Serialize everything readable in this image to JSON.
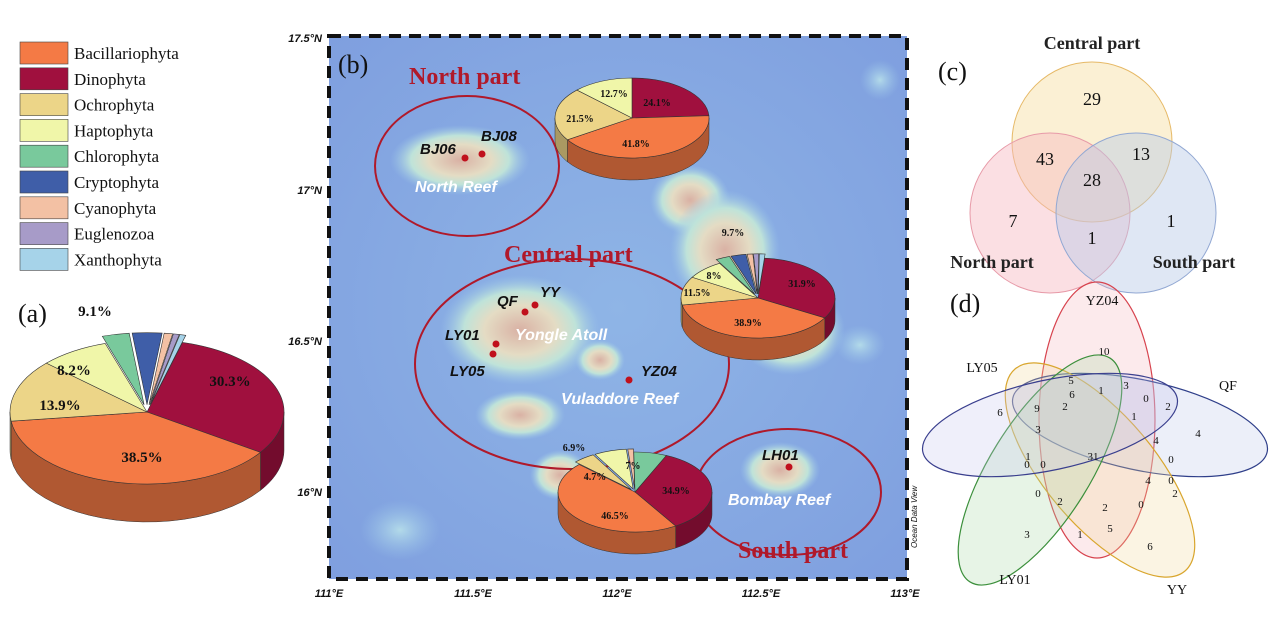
{
  "legend": {
    "items": [
      {
        "label": "Bacillariophyta",
        "color": "#f47a45"
      },
      {
        "label": "Dinophyta",
        "color": "#a0103e"
      },
      {
        "label": "Ochrophyta",
        "color": "#ecd588"
      },
      {
        "label": "Haptophyta",
        "color": "#f0f6a9"
      },
      {
        "label": "Chlorophyta",
        "color": "#79c99c"
      },
      {
        "label": "Cryptophyta",
        "color": "#3f5ea8"
      },
      {
        "label": "Cyanophyta",
        "color": "#f3c1a4"
      },
      {
        "label": "Euglenozoa",
        "color": "#a79bc8"
      },
      {
        "label": "Xanthophyta",
        "color": "#a6d3e9"
      }
    ]
  },
  "panel_labels": {
    "a": "(a)",
    "b": "(b)",
    "c": "(c)",
    "d": "(d)"
  },
  "pie_a": {
    "labels": [
      "38.5%",
      "30.3%",
      "13.9%",
      "8.2%",
      "9.1%"
    ]
  },
  "map": {
    "lat_ticks": [
      "17.5°N",
      "17°N",
      "16.5°N",
      "16°N"
    ],
    "lon_ticks": [
      "111°E",
      "111.5°E",
      "112°E",
      "112.5°E",
      "113°E"
    ],
    "region_titles": [
      "North part",
      "Central part",
      "South part"
    ],
    "reef_names": [
      "North Reef",
      "Yongle Atoll",
      "Vuladdore Reef",
      "Bombay Reef"
    ],
    "stations": [
      "BJ06",
      "BJ08",
      "QF",
      "YY",
      "LY01",
      "LY05",
      "YZ04",
      "LH01"
    ],
    "credit": "Ocean Data View",
    "pie_north": {
      "labels": [
        "24.1%",
        "41.8%",
        "21.5%",
        "12.7%"
      ]
    },
    "pie_central": {
      "labels": [
        "31.9%",
        "38.9%",
        "11.5%",
        "8%",
        "9.7%"
      ]
    },
    "pie_south": {
      "labels": [
        "34.9%",
        "46.5%",
        "4.7%",
        "6.9%",
        "7%"
      ]
    }
  },
  "venn3": {
    "set_labels": [
      "Central part",
      "North part",
      "South part"
    ],
    "regions": [
      "29",
      "7",
      "1",
      "43",
      "13",
      "1",
      "28"
    ]
  },
  "venn5": {
    "set_labels": [
      "YZ04",
      "QF",
      "YY",
      "LY01",
      "LY05"
    ],
    "numbers": [
      "10",
      "4",
      "6",
      "3",
      "6",
      "5",
      "3",
      "0",
      "2",
      "6",
      "1",
      "9",
      "2",
      "1",
      "4",
      "3",
      "0",
      "0",
      "1",
      "0",
      "31",
      "4",
      "2",
      "0",
      "0",
      "2",
      "2",
      "0",
      "1",
      "5"
    ]
  },
  "chart_data": [
    {
      "type": "pie",
      "title": "",
      "categories": [
        "Bacillariophyta",
        "Dinophyta",
        "Ochrophyta",
        "Haptophyta",
        "Chlorophyta",
        "Cryptophyta",
        "Cyanophyta",
        "Euglenozoa",
        "Xanthophyta"
      ],
      "values": [
        38.5,
        30.3,
        13.9,
        8.2,
        3.2,
        3.5,
        1.0,
        0.7,
        0.7
      ],
      "printed_labels": {
        "Bacillariophyta": "38.5%",
        "Dinophyta": "30.3%",
        "Ochrophyta": "13.9%",
        "Haptophyta": "8.2%",
        "other": "9.1%"
      }
    },
    {
      "type": "pie",
      "title": "North part",
      "categories": [
        "Dinophyta",
        "Bacillariophyta",
        "Ochrophyta",
        "Haptophyta"
      ],
      "values": [
        24.1,
        41.8,
        21.5,
        12.7
      ]
    },
    {
      "type": "pie",
      "title": "Central part",
      "categories": [
        "Dinophyta",
        "Bacillariophyta",
        "Ochrophyta",
        "Haptophyta",
        "other"
      ],
      "values": [
        31.9,
        38.9,
        11.5,
        8,
        9.7
      ]
    },
    {
      "type": "pie",
      "title": "South part",
      "categories": [
        "Dinophyta",
        "Bacillariophyta",
        "Ochrophyta",
        "Haptophyta",
        "Chlorophyta"
      ],
      "values": [
        34.9,
        46.5,
        4.7,
        6.9,
        7
      ]
    },
    {
      "type": "venn",
      "sets": [
        "Central part",
        "North part",
        "South part"
      ],
      "only_central": 29,
      "only_north": 7,
      "only_south": 1,
      "central_north": 43,
      "central_south": 13,
      "north_south": 1,
      "all": 28
    }
  ]
}
